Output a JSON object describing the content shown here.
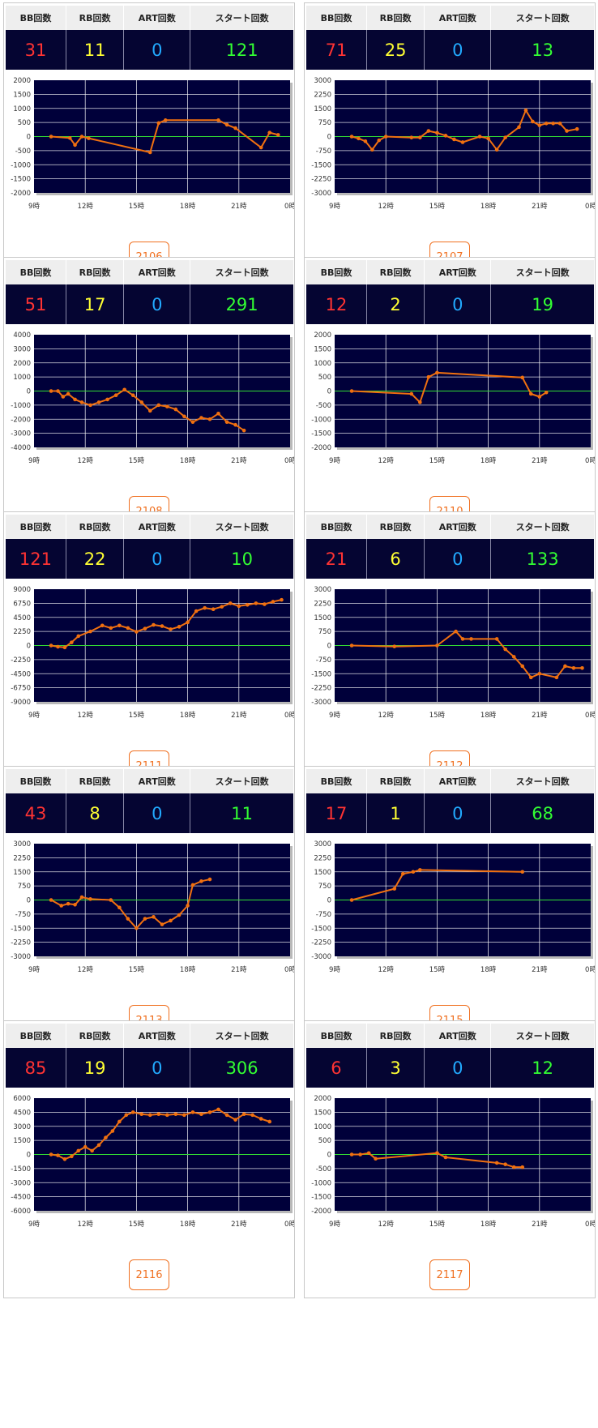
{
  "headers": {
    "bb": "BB回数",
    "rb": "RB回数",
    "art": "ART回数",
    "start": "スタート回数"
  },
  "x_ticks": [
    "9時",
    "12時",
    "15時",
    "18時",
    "21時",
    "0時"
  ],
  "colors": {
    "plot_bg": "#00003a",
    "line": "#f07010",
    "zero_line": "#33dd33",
    "bb": "#ff3333",
    "rb": "#ffff33",
    "art": "#22aaff",
    "start": "#33ff33"
  },
  "machines": [
    {
      "id": "2106",
      "bb": "31",
      "rb": "11",
      "art": "0",
      "start": "121"
    },
    {
      "id": "2107",
      "bb": "71",
      "rb": "25",
      "art": "0",
      "start": "13"
    },
    {
      "id": "2108",
      "bb": "51",
      "rb": "17",
      "art": "0",
      "start": "291"
    },
    {
      "id": "2110",
      "bb": "12",
      "rb": "2",
      "art": "0",
      "start": "19"
    },
    {
      "id": "2111",
      "bb": "121",
      "rb": "22",
      "art": "0",
      "start": "10"
    },
    {
      "id": "2112",
      "bb": "21",
      "rb": "6",
      "art": "0",
      "start": "133"
    },
    {
      "id": "2113",
      "bb": "43",
      "rb": "8",
      "art": "0",
      "start": "11"
    },
    {
      "id": "2115",
      "bb": "17",
      "rb": "1",
      "art": "0",
      "start": "68"
    },
    {
      "id": "2116",
      "bb": "85",
      "rb": "19",
      "art": "0",
      "start": "306"
    },
    {
      "id": "2117",
      "bb": "6",
      "rb": "3",
      "art": "0",
      "start": "12"
    }
  ],
  "chart_data": [
    {
      "type": "line",
      "machine": "2106",
      "xlabel": "",
      "ylabel": "",
      "xlim": [
        9,
        24
      ],
      "ylim": [
        -2000,
        2000
      ],
      "y_ticks": [
        "2000",
        "1500",
        "1000",
        "500",
        "0",
        "-500",
        "-1000",
        "-1500",
        "-2000"
      ],
      "x": [
        10,
        11.1,
        11.4,
        11.8,
        12.2,
        15.8,
        16.3,
        16.7,
        19.8,
        20.3,
        20.8,
        22.3,
        22.8,
        23.3
      ],
      "y": [
        0,
        -50,
        -300,
        0,
        -60,
        -560,
        480,
        580,
        580,
        420,
        300,
        -390,
        140,
        60
      ]
    },
    {
      "type": "line",
      "machine": "2107",
      "xlabel": "",
      "ylabel": "",
      "xlim": [
        9,
        24
      ],
      "ylim": [
        -3000,
        3000
      ],
      "y_ticks": [
        "3000",
        "2250",
        "1500",
        "750",
        "0",
        "-750",
        "-1500",
        "-2250",
        "-3000"
      ],
      "x": [
        10,
        10.4,
        10.8,
        11.2,
        11.6,
        12,
        13.5,
        14,
        14.5,
        15,
        15.5,
        16,
        16.5,
        17.5,
        18,
        18.5,
        19,
        19.8,
        20.2,
        20.6,
        21,
        21.4,
        21.8,
        22.2,
        22.6,
        23.2
      ],
      "y": [
        0,
        -100,
        -250,
        -700,
        -200,
        0,
        -50,
        -50,
        300,
        200,
        50,
        -150,
        -300,
        0,
        -100,
        -700,
        -50,
        500,
        1400,
        800,
        600,
        700,
        700,
        700,
        300,
        400
      ]
    },
    {
      "type": "line",
      "machine": "2108",
      "xlabel": "",
      "ylabel": "",
      "xlim": [
        9,
        24
      ],
      "ylim": [
        -4000,
        4000
      ],
      "y_ticks": [
        "4000",
        "3000",
        "2000",
        "1000",
        "0",
        "-1000",
        "-2000",
        "-3000",
        "-4000"
      ],
      "x": [
        10,
        10.4,
        10.7,
        11,
        11.4,
        11.8,
        12.3,
        12.8,
        13.3,
        13.8,
        14.3,
        14.8,
        15.3,
        15.8,
        16.3,
        16.8,
        17.3,
        17.8,
        18.3,
        18.8,
        19.3,
        19.8,
        20.3,
        20.8,
        21.3
      ],
      "y": [
        0,
        0,
        -400,
        -200,
        -600,
        -800,
        -1000,
        -800,
        -600,
        -300,
        100,
        -300,
        -800,
        -1400,
        -1000,
        -1100,
        -1300,
        -1800,
        -2200,
        -1900,
        -2000,
        -1600,
        -2200,
        -2400,
        -2800
      ]
    },
    {
      "type": "line",
      "machine": "2110",
      "xlabel": "",
      "ylabel": "",
      "xlim": [
        9,
        24
      ],
      "ylim": [
        -2000,
        2000
      ],
      "y_ticks": [
        "2000",
        "1500",
        "1000",
        "500",
        "0",
        "-500",
        "-1000",
        "-1500",
        "-2000"
      ],
      "x": [
        10,
        13.5,
        14,
        14.5,
        15,
        20,
        20.5,
        21,
        21.4
      ],
      "y": [
        0,
        -100,
        -400,
        500,
        650,
        480,
        -100,
        -200,
        -50
      ]
    },
    {
      "type": "line",
      "machine": "2111",
      "xlabel": "",
      "ylabel": "",
      "xlim": [
        9,
        24
      ],
      "ylim": [
        -9000,
        9000
      ],
      "y_ticks": [
        "9000",
        "6750",
        "4500",
        "2250",
        "0",
        "-2250",
        "-4500",
        "-6750",
        "-9000"
      ],
      "x": [
        10,
        10.4,
        10.8,
        11.2,
        11.6,
        12.3,
        13,
        13.5,
        14,
        14.5,
        15,
        15.5,
        16,
        16.5,
        17,
        17.5,
        18,
        18.5,
        19,
        19.5,
        20,
        20.5,
        21,
        21.5,
        22,
        22.5,
        23,
        23.5
      ],
      "y": [
        0,
        -200,
        -300,
        500,
        1500,
        2250,
        3200,
        2800,
        3200,
        2800,
        2200,
        2700,
        3300,
        3100,
        2600,
        3000,
        3700,
        5500,
        6000,
        5800,
        6200,
        6750,
        6300,
        6500,
        6750,
        6600,
        7000,
        7300
      ]
    },
    {
      "type": "line",
      "machine": "2112",
      "xlabel": "",
      "ylabel": "",
      "xlim": [
        9,
        24
      ],
      "ylim": [
        -3000,
        3000
      ],
      "y_ticks": [
        "3000",
        "2250",
        "1500",
        "750",
        "0",
        "-750",
        "-1500",
        "-2250",
        "-3000"
      ],
      "x": [
        10,
        12.5,
        15,
        16.1,
        16.5,
        17,
        18.5,
        19,
        19.5,
        20,
        20.5,
        21,
        22,
        22.5,
        23,
        23.5
      ],
      "y": [
        0,
        -50,
        0,
        750,
        350,
        350,
        350,
        -200,
        -600,
        -1100,
        -1700,
        -1500,
        -1700,
        -1100,
        -1200,
        -1200
      ]
    },
    {
      "type": "line",
      "machine": "2113",
      "xlabel": "",
      "ylabel": "",
      "xlim": [
        9,
        24
      ],
      "ylim": [
        -3000,
        3000
      ],
      "y_ticks": [
        "3000",
        "2250",
        "1500",
        "750",
        "0",
        "-750",
        "-1500",
        "-2250",
        "-3000"
      ],
      "x": [
        10,
        10.6,
        11,
        11.4,
        11.8,
        12.3,
        13.5,
        14,
        14.5,
        15,
        15.5,
        16,
        16.5,
        17,
        17.5,
        18,
        18.3,
        18.8,
        19.3
      ],
      "y": [
        0,
        -300,
        -200,
        -250,
        150,
        50,
        0,
        -400,
        -1000,
        -1500,
        -1000,
        -900,
        -1300,
        -1100,
        -800,
        -300,
        800,
        1000,
        1100
      ]
    },
    {
      "type": "line",
      "machine": "2115",
      "xlabel": "",
      "ylabel": "",
      "xlim": [
        9,
        24
      ],
      "ylim": [
        -3000,
        3000
      ],
      "y_ticks": [
        "3000",
        "2250",
        "1500",
        "750",
        "0",
        "-750",
        "-1500",
        "-2250",
        "-3000"
      ],
      "x": [
        10,
        12.5,
        13,
        13.6,
        14,
        20
      ],
      "y": [
        0,
        600,
        1400,
        1500,
        1600,
        1500
      ]
    },
    {
      "type": "line",
      "machine": "2116",
      "xlabel": "",
      "ylabel": "",
      "xlim": [
        9,
        24
      ],
      "ylim": [
        -6000,
        6000
      ],
      "y_ticks": [
        "6000",
        "4500",
        "3000",
        "1500",
        "0",
        "-1500",
        "-3000",
        "-4500",
        "-6000"
      ],
      "x": [
        10,
        10.4,
        10.8,
        11.2,
        11.6,
        12,
        12.4,
        12.8,
        13.2,
        13.6,
        14,
        14.4,
        14.8,
        15.3,
        15.8,
        16.3,
        16.8,
        17.3,
        17.8,
        18.3,
        18.8,
        19.3,
        19.8,
        20.3,
        20.8,
        21.3,
        21.8,
        22.3,
        22.8
      ],
      "y": [
        0,
        -100,
        -500,
        -200,
        400,
        800,
        400,
        1000,
        1800,
        2500,
        3500,
        4200,
        4500,
        4300,
        4200,
        4300,
        4200,
        4300,
        4200,
        4500,
        4300,
        4500,
        4800,
        4200,
        3700,
        4300,
        4200,
        3800,
        3500
      ]
    },
    {
      "type": "line",
      "machine": "2117",
      "xlabel": "",
      "ylabel": "",
      "xlim": [
        9,
        24
      ],
      "ylim": [
        -2000,
        2000
      ],
      "y_ticks": [
        "2000",
        "1500",
        "1000",
        "500",
        "0",
        "-500",
        "-1000",
        "-1500",
        "-2000"
      ],
      "x": [
        10,
        10.5,
        11,
        11.4,
        15,
        15.5,
        18.5,
        19,
        19.5,
        20
      ],
      "y": [
        0,
        0,
        50,
        -150,
        50,
        -100,
        -300,
        -350,
        -450,
        -450
      ]
    }
  ]
}
